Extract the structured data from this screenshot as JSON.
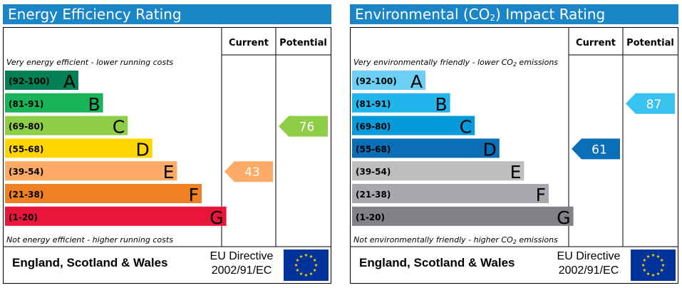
{
  "colors": {
    "title_bg": "#1a86c8",
    "eu_flag_bg": "#003399",
    "eu_star": "#ffcc00"
  },
  "footer": {
    "country": "England, Scotland & Wales",
    "directive_line1": "EU Directive",
    "directive_line2": "2002/91/EC"
  },
  "chart_data": [
    {
      "type": "bar",
      "title": "Energy Efficiency Rating",
      "column_headers": [
        "Current",
        "Potential"
      ],
      "top_caption": "Very energy efficient - lower running costs",
      "bottom_caption": "Not energy efficient - higher running costs",
      "bands": [
        {
          "range": "(92-100)",
          "letter": "A",
          "color": "#008054",
          "level": 1
        },
        {
          "range": "(81-91)",
          "letter": "B",
          "color": "#19b459",
          "level": 2
        },
        {
          "range": "(69-80)",
          "letter": "C",
          "color": "#8dce46",
          "level": 3
        },
        {
          "range": "(55-68)",
          "letter": "D",
          "color": "#ffd500",
          "level": 4
        },
        {
          "range": "(39-54)",
          "letter": "E",
          "color": "#fcaa65",
          "level": 5
        },
        {
          "range": "(21-38)",
          "letter": "F",
          "color": "#ef8023",
          "level": 6
        },
        {
          "range": "(1-20)",
          "letter": "G",
          "color": "#e9153b",
          "level": 7
        }
      ],
      "current": {
        "value": 43,
        "band": "E",
        "color": "#fcaa65"
      },
      "potential": {
        "value": 76,
        "band": "C",
        "color": "#8dce46"
      }
    },
    {
      "type": "bar",
      "title_prefix": "Environmental (CO",
      "title_sub": "2",
      "title_suffix": ") Impact Rating",
      "column_headers": [
        "Current",
        "Potential"
      ],
      "top_caption_prefix": "Very environmentally friendly - lower CO",
      "top_caption_sub": "2",
      "top_caption_suffix": " emissions",
      "bottom_caption_prefix": "Not environmentally friendly - higher CO",
      "bottom_caption_sub": "2",
      "bottom_caption_suffix": " emissions",
      "bands": [
        {
          "range": "(92-100)",
          "letter": "A",
          "color": "#6ccff6",
          "level": 1
        },
        {
          "range": "(81-91)",
          "letter": "B",
          "color": "#22b5eb",
          "level": 2
        },
        {
          "range": "(69-80)",
          "letter": "C",
          "color": "#059ad9",
          "level": 3
        },
        {
          "range": "(55-68)",
          "letter": "D",
          "color": "#0a6fb7",
          "level": 4
        },
        {
          "range": "(39-54)",
          "letter": "E",
          "color": "#bcbec0",
          "level": 5
        },
        {
          "range": "(21-38)",
          "letter": "F",
          "color": "#a7a9ac",
          "level": 6
        },
        {
          "range": "(1-20)",
          "letter": "G",
          "color": "#808285",
          "level": 7
        }
      ],
      "current": {
        "value": 61,
        "band": "D",
        "color": "#0a6fb7"
      },
      "potential": {
        "value": 87,
        "band": "B",
        "color": "#37c2ef"
      }
    }
  ]
}
